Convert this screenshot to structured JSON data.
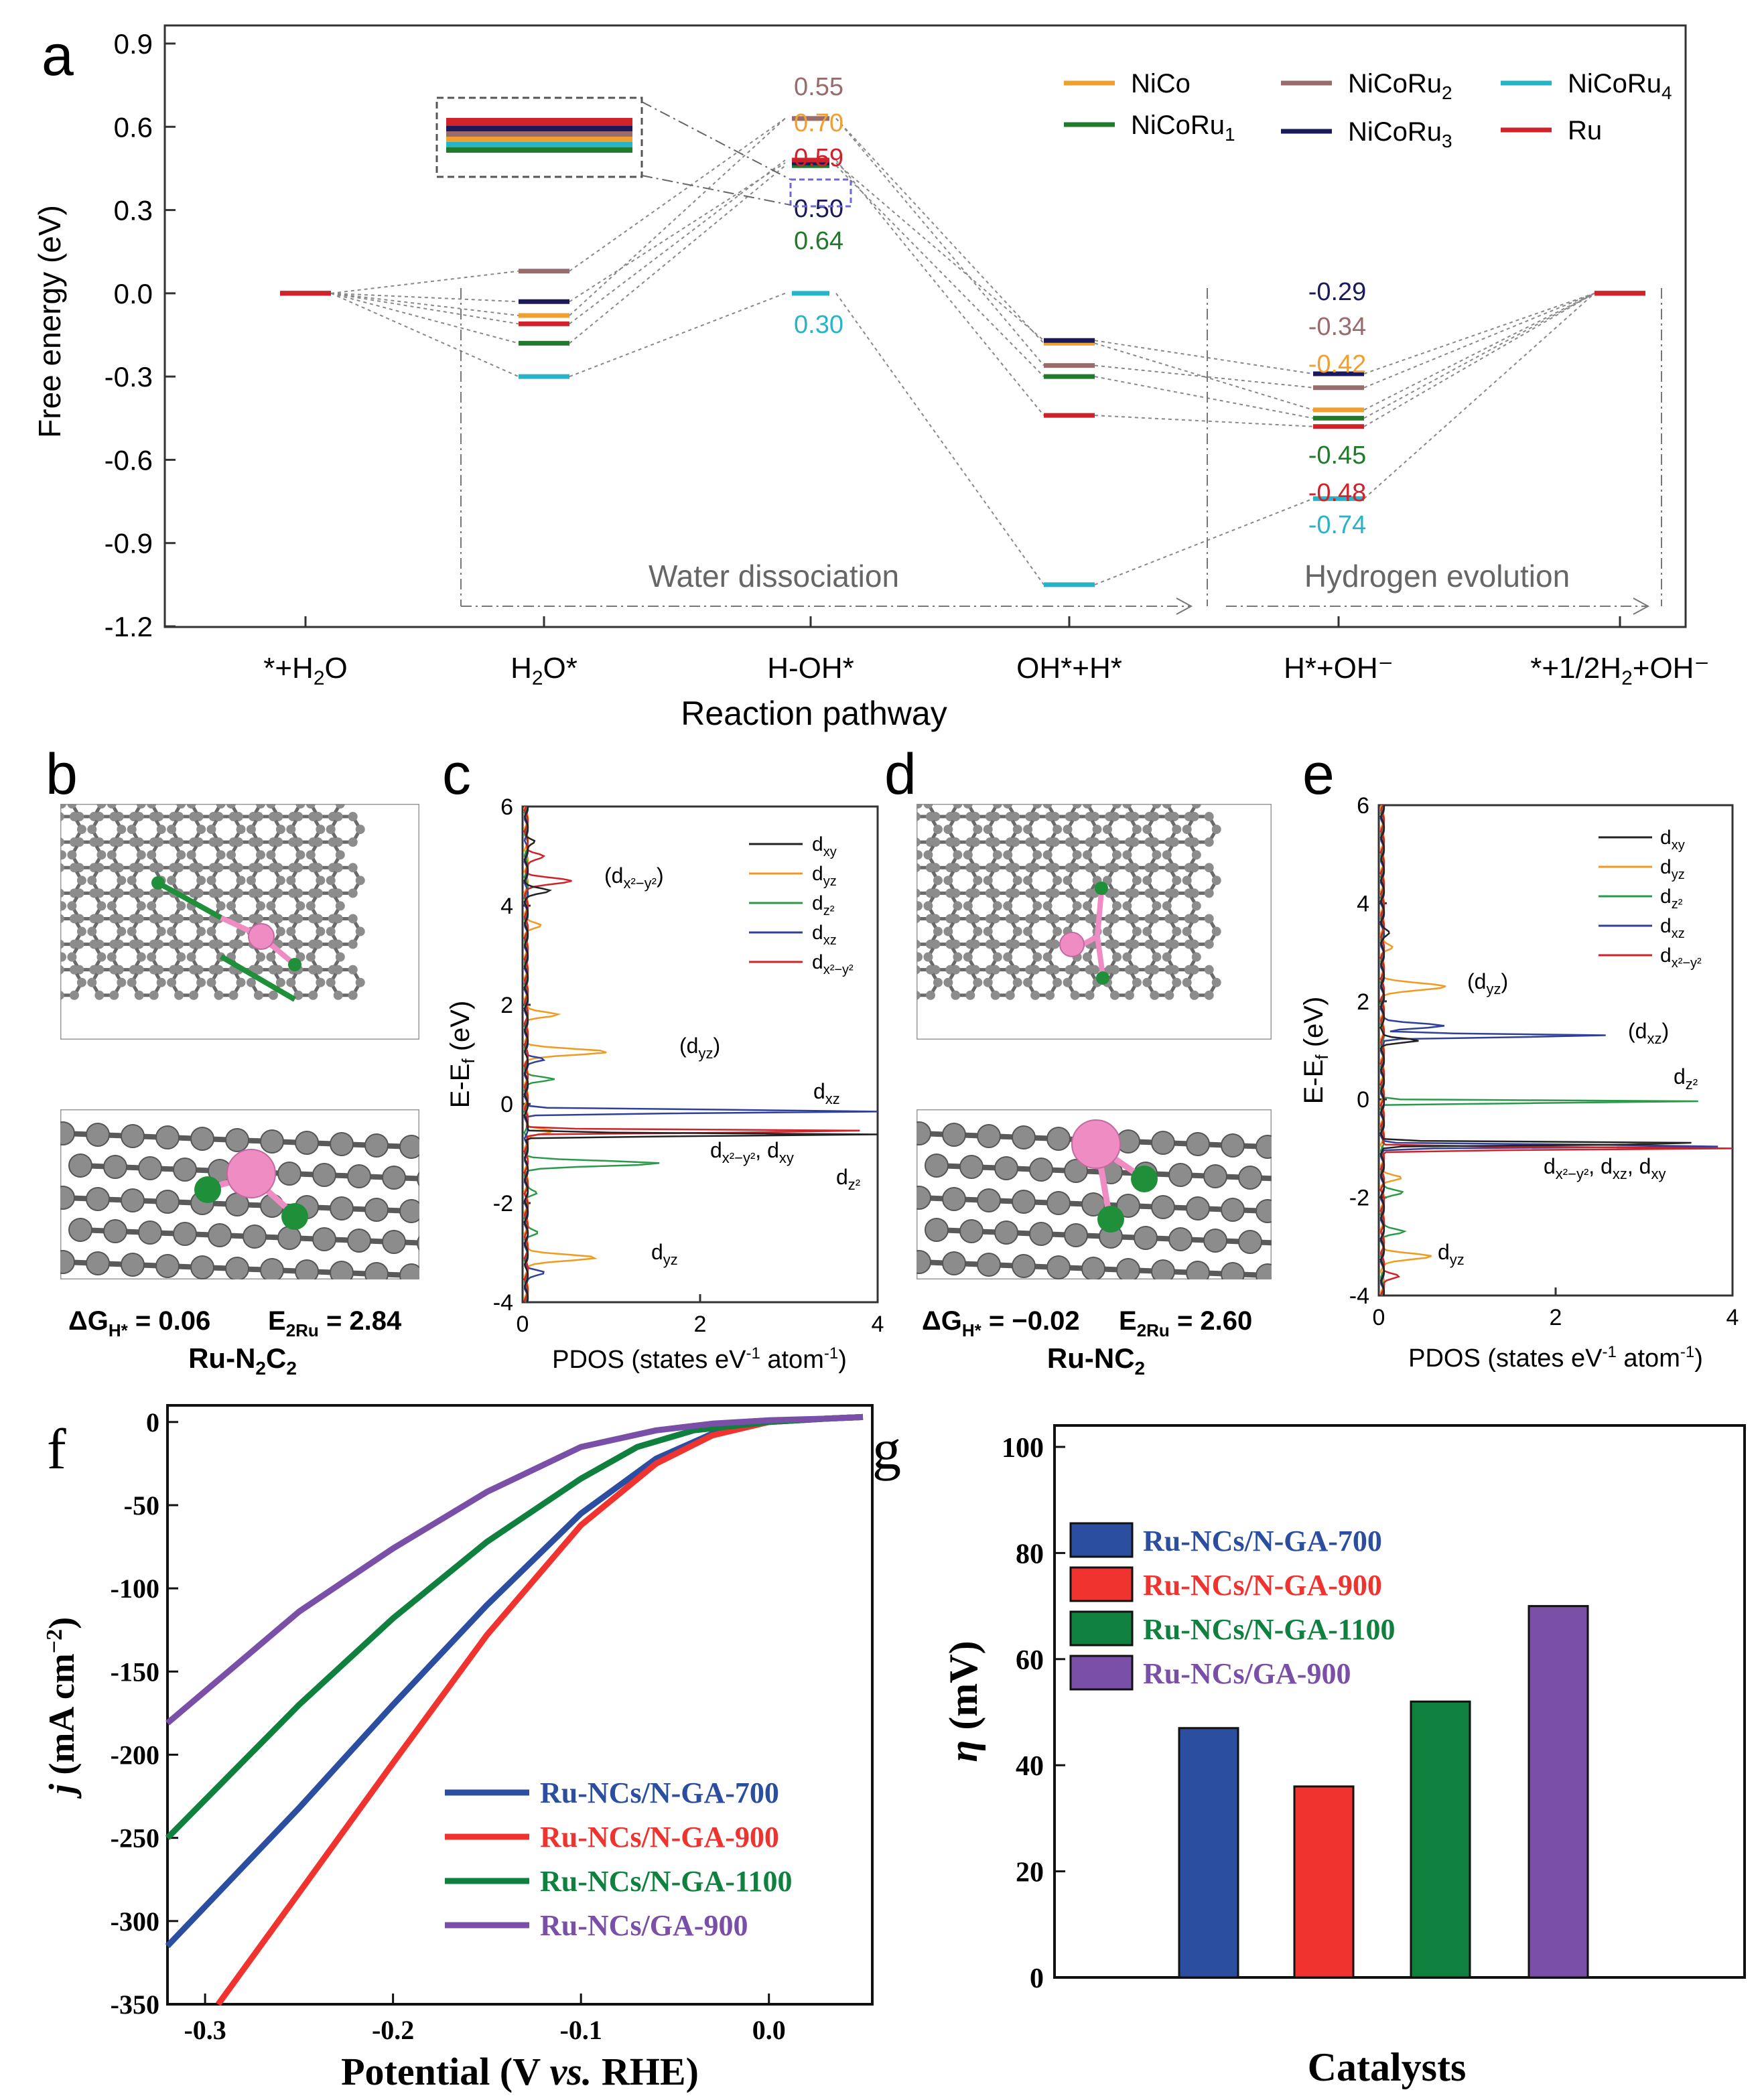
{
  "panel_letters": {
    "a": "a",
    "b": "b",
    "c": "c",
    "d": "d",
    "e": "e",
    "f": "f",
    "g": "g"
  },
  "colors": {
    "NiCo": "#f0a030",
    "NiCoRu1": "#1f7a2a",
    "NiCoRu2": "#9a6b6b",
    "NiCoRu3": "#1a1a5a",
    "NiCoRu4": "#28b4c8",
    "Ru": "#d0222a",
    "gray": "#777777",
    "blue": "#2b4ea0",
    "red": "#f0332e",
    "green": "#10803e",
    "purple": "#7a4fa8",
    "dxy": "#222222",
    "dyz": "#f09a20",
    "dz2": "#2a9a4a",
    "dxz": "#30409a",
    "dx2y2": "#d0222a",
    "atom_c": "#8c8c8c",
    "atom_n": "#1f8f3a",
    "atom_ru": "#f08cc4"
  },
  "chart_data": [
    {
      "id": "a",
      "type": "line",
      "title": "",
      "ylabel": "Free energy (eV)",
      "xlabel": "Reaction pathway",
      "ylim": [
        -1.2,
        0.9
      ],
      "yticks": [
        "0.9",
        "0.6",
        "0.3",
        "0.0",
        "-0.3",
        "-0.6",
        "-0.9",
        "-1.2"
      ],
      "ytick_values": [
        0.9,
        0.6,
        0.3,
        0.0,
        -0.3,
        -0.6,
        -0.9,
        -1.2
      ],
      "categories": [
        "*+H₂O",
        "H₂O*",
        "H-OH*",
        "OH*+H*",
        "H*+OH⁻",
        "*+1/2H₂+OH⁻"
      ],
      "series": [
        {
          "name": "NiCo",
          "color": "NiCo",
          "values": [
            0.0,
            -0.08,
            0.63,
            -0.18,
            -0.42,
            0.0
          ]
        },
        {
          "name": "NiCoRu₁",
          "color": "NiCoRu1",
          "values": [
            0.0,
            -0.18,
            0.46,
            -0.3,
            -0.45,
            0.0
          ]
        },
        {
          "name": "NiCoRu₂",
          "color": "NiCoRu2",
          "values": [
            0.0,
            0.08,
            0.63,
            -0.26,
            -0.34,
            0.0
          ]
        },
        {
          "name": "NiCoRu₃",
          "color": "NiCoRu3",
          "values": [
            0.0,
            -0.03,
            0.47,
            -0.17,
            -0.29,
            0.0
          ]
        },
        {
          "name": "NiCoRu₄",
          "color": "NiCoRu4",
          "values": [
            0.0,
            -0.3,
            0.0,
            -1.05,
            -0.74,
            0.0
          ]
        },
        {
          "name": "Ru",
          "color": "Ru",
          "values": [
            0.0,
            -0.11,
            0.48,
            -0.44,
            -0.48,
            0.0
          ]
        }
      ],
      "barrier_labels": [
        {
          "text": "0.55",
          "color": "NiCoRu2"
        },
        {
          "text": "0.70",
          "color": "NiCo"
        },
        {
          "text": "0.59",
          "color": "Ru"
        },
        {
          "text": "0.50",
          "color": "NiCoRu3"
        },
        {
          "text": "0.64",
          "color": "NiCoRu1"
        },
        {
          "text": "0.30",
          "color": "NiCoRu4"
        }
      ],
      "h_labels": [
        {
          "text": "-0.29",
          "color": "NiCoRu3"
        },
        {
          "text": "-0.34",
          "color": "NiCoRu2"
        },
        {
          "text": "-0.42",
          "color": "NiCo"
        },
        {
          "text": "-0.45",
          "color": "NiCoRu1"
        },
        {
          "text": "-0.48",
          "color": "Ru"
        },
        {
          "text": "-0.74",
          "color": "NiCoRu4"
        }
      ],
      "section_labels": {
        "water": "Water dissociation",
        "hydrogen": "Hydrogen evolution"
      }
    },
    {
      "id": "c",
      "type": "line",
      "xlabel": "PDOS (states eV⁻¹ atom⁻¹)",
      "ylabel": "E-E_f (eV)",
      "xlim": [
        0,
        4
      ],
      "ylim": [
        -4,
        6
      ],
      "xticks": [
        "0",
        "2",
        "4"
      ],
      "xtick_values": [
        0,
        2,
        4
      ],
      "yticks": [
        "6",
        "4",
        "2",
        "0",
        "-2",
        "-4"
      ],
      "ytick_values": [
        6,
        4,
        2,
        0,
        -2,
        -4
      ],
      "legend": [
        "dxy",
        "dyz",
        "dz2",
        "dxz",
        "dx2-y2"
      ],
      "annotations": [
        "(dx²−y²)",
        "(dyz)",
        "dxz",
        "dx²−y², dxy",
        "dz²",
        "dyz"
      ]
    },
    {
      "id": "e",
      "type": "line",
      "xlabel": "PDOS (states eV⁻¹ atom⁻¹)",
      "ylabel": "E-E_f (eV)",
      "xlim": [
        0,
        4
      ],
      "ylim": [
        -4,
        6
      ],
      "xticks": [
        "0",
        "2",
        "4"
      ],
      "xtick_values": [
        0,
        2,
        4
      ],
      "yticks": [
        "6",
        "4",
        "2",
        "0",
        "-2",
        "-4"
      ],
      "ytick_values": [
        6,
        4,
        2,
        0,
        -2,
        -4
      ],
      "legend": [
        "dxy",
        "dyz",
        "dz2",
        "dxz",
        "dx2-y2"
      ],
      "annotations": [
        "(dyz)",
        "(dxz)",
        "dz²",
        "dx²−y², dxz, dxy",
        "dyz"
      ]
    },
    {
      "id": "f",
      "type": "line",
      "xlabel": "Potential (V vs. RHE)",
      "ylabel": "j (mA cm⁻²)",
      "xlim": [
        -0.32,
        0.055
      ],
      "ylim": [
        -350,
        10
      ],
      "xticks": [
        "-0.3",
        "-0.2",
        "-0.1",
        "0.0"
      ],
      "xtick_values": [
        -0.3,
        -0.2,
        -0.1,
        0.0
      ],
      "yticks": [
        "0",
        "-50",
        "-100",
        "-150",
        "-200",
        "-250",
        "-300",
        "-350"
      ],
      "ytick_values": [
        0,
        -50,
        -100,
        -150,
        -200,
        -250,
        -300,
        -350
      ],
      "series": [
        {
          "name": "Ru-NCs/N-GA-700",
          "color": "blue",
          "x": [
            -0.32,
            -0.25,
            -0.2,
            -0.15,
            -0.1,
            -0.06,
            -0.03,
            0.0,
            0.03,
            0.05
          ],
          "y": [
            -315,
            -232,
            -170,
            -110,
            -55,
            -22,
            -7,
            0,
            2,
            3
          ]
        },
        {
          "name": "Ru-NCs/N-GA-900",
          "color": "red",
          "x": [
            -0.293,
            -0.25,
            -0.2,
            -0.15,
            -0.1,
            -0.06,
            -0.03,
            0.0,
            0.03,
            0.05
          ],
          "y": [
            -350,
            -283,
            -205,
            -128,
            -62,
            -25,
            -8,
            0,
            2,
            3
          ]
        },
        {
          "name": "Ru-NCs/N-GA-1100",
          "color": "green",
          "x": [
            -0.32,
            -0.25,
            -0.2,
            -0.15,
            -0.1,
            -0.07,
            -0.04,
            0.0,
            0.03,
            0.05
          ],
          "y": [
            -250,
            -170,
            -118,
            -72,
            -34,
            -15,
            -5,
            0,
            2,
            3
          ]
        },
        {
          "name": "Ru-NCs/GA-900",
          "color": "purple",
          "x": [
            -0.32,
            -0.25,
            -0.2,
            -0.15,
            -0.1,
            -0.06,
            -0.03,
            0.0,
            0.03,
            0.05
          ],
          "y": [
            -181,
            -114,
            -76,
            -42,
            -15,
            -5,
            -1,
            1,
            2,
            3
          ]
        }
      ]
    },
    {
      "id": "g",
      "type": "bar",
      "xlabel": "Catalysts",
      "ylabel": "η (mV)",
      "ylim": [
        0,
        100
      ],
      "yticks": [
        "0",
        "20",
        "40",
        "60",
        "80",
        "100"
      ],
      "ytick_values": [
        0,
        20,
        40,
        60,
        80,
        100
      ],
      "categories": [
        "Ru-NCs/N-GA-700",
        "Ru-NCs/N-GA-900",
        "Ru-NCs/N-GA-1100",
        "Ru-NCs/GA-900"
      ],
      "values": [
        47,
        36,
        52,
        70
      ],
      "colors": [
        "blue",
        "red",
        "green",
        "purple"
      ]
    }
  ],
  "structures": {
    "b": {
      "dg_label": "ΔG",
      "dg_sub": "H*",
      "dg_value": "= 0.06",
      "e_label": "E",
      "e_sub": "2Ru",
      "e_value": "= 2.84",
      "name": "Ru-N",
      "name_sub1": "2",
      "name_mid": "C",
      "name_sub2": "2"
    },
    "d": {
      "dg_label": "ΔG",
      "dg_sub": "H*",
      "dg_value": "= −0.02",
      "e_label": "E",
      "e_sub": "2Ru",
      "e_value": "= 2.60",
      "name": "Ru-NC",
      "name_sub1": "2"
    }
  }
}
